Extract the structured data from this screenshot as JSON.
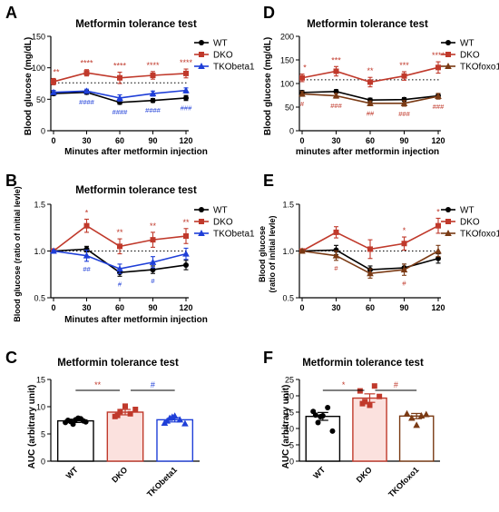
{
  "colors": {
    "wt": "#000000",
    "dko": "#c0392b",
    "tko_blue": "#1f3fd8",
    "tko_brown": "#7a3a14",
    "sig_red": "#c0392b",
    "sig_blue": "#1f3fd8",
    "bar_fill_dko": "#fbe1de"
  },
  "panels": {
    "A": {
      "letter": "A"
    },
    "B": {
      "letter": "B"
    },
    "C": {
      "letter": "C"
    },
    "D": {
      "letter": "D"
    },
    "E": {
      "letter": "E"
    },
    "F": {
      "letter": "F"
    }
  },
  "chart_data": [
    {
      "id": "A",
      "type": "line",
      "title": "Metformin tolerance test",
      "xlabel": "Minutes after metformin injection",
      "ylabel": "Blood glucose (mg/dL)",
      "x": [
        0,
        30,
        60,
        90,
        120
      ],
      "xticks": [
        "0",
        "30",
        "60",
        "90",
        "120"
      ],
      "ylim": [
        0,
        150
      ],
      "yticks": [
        "0",
        "50",
        "100",
        "150"
      ],
      "dotted_reference": 76,
      "legend": [
        "WT",
        "DKO",
        "TKObeta1"
      ],
      "series": [
        {
          "name": "WT",
          "values": [
            59,
            61,
            45,
            48,
            52
          ],
          "errors": [
            3,
            3,
            3,
            3,
            4
          ],
          "marker": "circle"
        },
        {
          "name": "DKO",
          "values": [
            78,
            92,
            84,
            88,
            91
          ],
          "errors": [
            5,
            5,
            9,
            6,
            7
          ],
          "marker": "square"
        },
        {
          "name": "TKObeta1",
          "values": [
            61,
            63,
            52,
            59,
            64
          ],
          "errors": [
            3,
            3,
            5,
            4,
            4
          ],
          "marker": "triangle"
        }
      ],
      "annotations_red": [
        "**",
        "****",
        "****",
        "****",
        "****"
      ],
      "annotations_blue": [
        "",
        "####",
        "####",
        "####",
        "###"
      ]
    },
    {
      "id": "B",
      "type": "line",
      "title": "Metformin tolerance test",
      "xlabel": "Minutes after metformin injection",
      "ylabel": "Blood glucose (ratio of initial levle)",
      "x": [
        0,
        30,
        60,
        90,
        120
      ],
      "xticks": [
        "0",
        "30",
        "60",
        "90",
        "120"
      ],
      "ylim": [
        0.5,
        1.5
      ],
      "yticks": [
        "0.5",
        "1.0",
        "1.5"
      ],
      "dotted_reference": 1.0,
      "legend": [
        "WT",
        "DKO",
        "TKObeta1"
      ],
      "series": [
        {
          "name": "WT",
          "values": [
            1.0,
            1.02,
            0.77,
            0.8,
            0.85
          ],
          "errors": [
            0.01,
            0.03,
            0.04,
            0.04,
            0.05
          ],
          "marker": "circle"
        },
        {
          "name": "DKO",
          "values": [
            1.0,
            1.27,
            1.05,
            1.12,
            1.16
          ],
          "errors": [
            0.01,
            0.07,
            0.08,
            0.08,
            0.08
          ],
          "marker": "square"
        },
        {
          "name": "TKObeta1",
          "values": [
            1.0,
            0.95,
            0.81,
            0.88,
            0.97
          ],
          "errors": [
            0.01,
            0.06,
            0.05,
            0.06,
            0.06
          ],
          "marker": "triangle"
        }
      ],
      "annotations_red": [
        "",
        "*",
        "**",
        "**",
        "**"
      ],
      "annotations_blue": [
        "",
        "##",
        "#",
        "#",
        ""
      ]
    },
    {
      "id": "C",
      "type": "bar",
      "title": "Metformin tolerance test",
      "ylabel": "AUC (arbitrary unit)",
      "categories": [
        "WT",
        "DKO",
        "TKObeta1"
      ],
      "ylim": [
        0,
        15
      ],
      "yticks": [
        "0",
        "5",
        "10",
        "15"
      ],
      "values": [
        7.4,
        9.0,
        7.6
      ],
      "errors": [
        0.3,
        0.5,
        0.4
      ],
      "points": [
        [
          7.1,
          7.3,
          7.6,
          7.8,
          7.2,
          7.5,
          6.8,
          7.9,
          7.4
        ],
        [
          8.2,
          9.1,
          10.1,
          8.7,
          9.5,
          8.4
        ],
        [
          7.0,
          7.9,
          8.3,
          7.6,
          6.9,
          7.4,
          8.1
        ]
      ],
      "comparisons": [
        {
          "from": 0,
          "to": 1,
          "label": "**",
          "color": "red"
        },
        {
          "from": 1,
          "to": 2,
          "label": "#",
          "color": "blue"
        }
      ]
    },
    {
      "id": "D",
      "type": "line",
      "title": "Metformin tolerance test",
      "xlabel": "minutes after metformin injection",
      "ylabel": "Blood glucose (mg/dL)",
      "x": [
        0,
        30,
        60,
        90,
        120
      ],
      "xticks": [
        "0",
        "30",
        "60",
        "90",
        "120"
      ],
      "ylim": [
        0,
        200
      ],
      "yticks": [
        "0",
        "50",
        "100",
        "150",
        "200"
      ],
      "dotted_reference": 108,
      "legend": [
        "WT",
        "DKO",
        "TKOfoxo1"
      ],
      "series": [
        {
          "name": "WT",
          "values": [
            81,
            83,
            65,
            66,
            74
          ],
          "errors": [
            4,
            4,
            4,
            4,
            4
          ],
          "marker": "circle"
        },
        {
          "name": "DKO",
          "values": [
            112,
            126,
            103,
            116,
            134
          ],
          "errors": [
            8,
            10,
            10,
            9,
            12
          ],
          "marker": "square"
        },
        {
          "name": "TKOfoxo1",
          "values": [
            78,
            74,
            58,
            58,
            73
          ],
          "errors": [
            5,
            5,
            5,
            6,
            6
          ],
          "marker": "triangle"
        }
      ],
      "annotations_red": [
        "*",
        "***",
        "**",
        "***",
        "****"
      ],
      "annotations_sub": [
        "#",
        "###",
        "##",
        "###",
        "###"
      ]
    },
    {
      "id": "E",
      "type": "line",
      "title": "",
      "xlabel": "",
      "ylabel": "Blood glucose\n(ratio of initial levle)",
      "x": [
        0,
        30,
        60,
        90,
        120
      ],
      "xticks": [
        "0",
        "30",
        "60",
        "90",
        "120"
      ],
      "ylim": [
        0.5,
        1.5
      ],
      "yticks": [
        "0.5",
        "1.0",
        "1.5"
      ],
      "dotted_reference": 1.0,
      "legend": [
        "WT",
        "DKO",
        "TKOfoxo1"
      ],
      "series": [
        {
          "name": "WT",
          "values": [
            1.0,
            1.01,
            0.8,
            0.82,
            0.92
          ],
          "errors": [
            0.01,
            0.05,
            0.04,
            0.04,
            0.05
          ],
          "marker": "circle"
        },
        {
          "name": "DKO",
          "values": [
            1.0,
            1.2,
            1.02,
            1.08,
            1.27
          ],
          "errors": [
            0.01,
            0.06,
            0.1,
            0.07,
            0.08
          ],
          "marker": "square"
        },
        {
          "name": "TKOfoxo1",
          "values": [
            1.0,
            0.95,
            0.76,
            0.8,
            1.0
          ],
          "errors": [
            0.01,
            0.05,
            0.05,
            0.06,
            0.06
          ],
          "marker": "triangle"
        }
      ],
      "annotations_red": [
        "",
        "",
        "",
        "*",
        "*"
      ],
      "annotations_sub": [
        "",
        "#",
        "",
        "#",
        ""
      ]
    },
    {
      "id": "F",
      "type": "bar",
      "title": "Metformin tolerance test",
      "ylabel": "AUC (arbitrary unit)",
      "categories": [
        "WT",
        "DKO",
        "TKOfoxo1"
      ],
      "ylim": [
        0,
        25
      ],
      "yticks": [
        "0",
        "5",
        "10",
        "15",
        "20",
        "25"
      ],
      "values": [
        13.7,
        19.3,
        13.8
      ],
      "errors": [
        1.2,
        1.3,
        0.8
      ],
      "points": [
        [
          15.2,
          11.8,
          13.9,
          16.4,
          9.2,
          14.1,
          13.6
        ],
        [
          21.5,
          18.2,
          17.1,
          23.0,
          19.8,
          17.6
        ],
        [
          14.5,
          13.2,
          11.0,
          13.9,
          14.3
        ]
      ],
      "comparisons": [
        {
          "from": 0,
          "to": 1,
          "label": "*",
          "color": "red"
        },
        {
          "from": 1,
          "to": 2,
          "label": "#",
          "color": "red"
        }
      ]
    }
  ]
}
